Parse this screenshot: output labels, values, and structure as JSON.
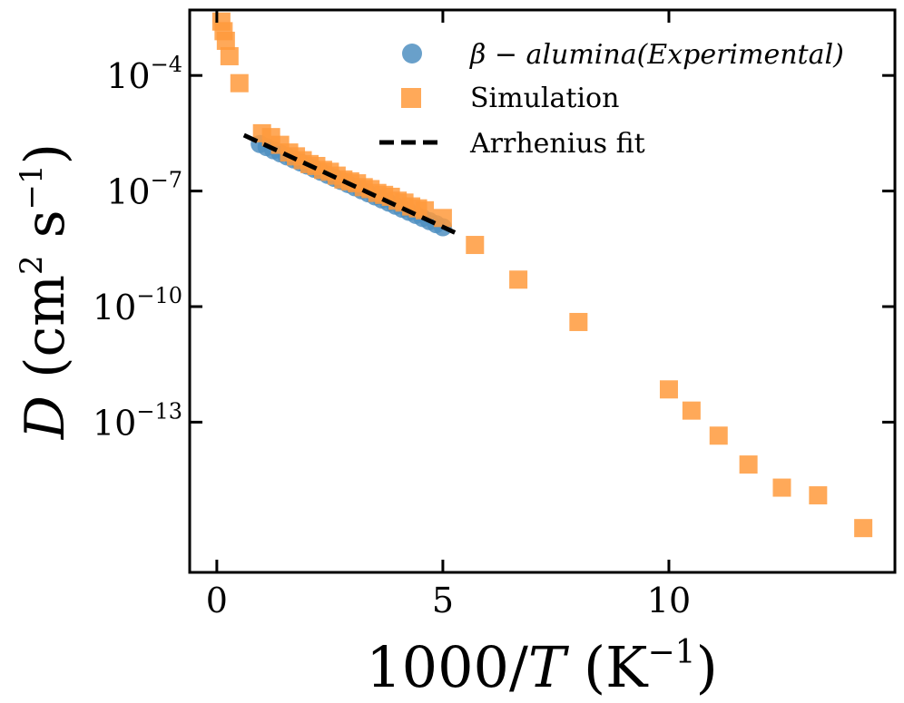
{
  "chart_data": {
    "type": "scatter",
    "title": "",
    "xlabel": "1000/T (K⁻¹)",
    "xlabel_parts": {
      "main": "1000/",
      "var": "T",
      "unit_open": " (K",
      "unit_sup": "−1",
      "unit_close": ")"
    },
    "ylabel": "D (cm² s⁻¹)",
    "ylabel_parts": {
      "var": "D",
      "unit_open": " (cm",
      "unit_sup1": "2",
      "unit_mid": " s",
      "unit_sup2": "−1",
      "unit_close": ")"
    },
    "xlim": [
      -0.6,
      15.0
    ],
    "ylim": [
      -16.9,
      -2.3
    ],
    "yscale": "log",
    "xticks": [
      0,
      5,
      10
    ],
    "xtick_labels": [
      "0",
      "5",
      "10"
    ],
    "yticks": [
      -4,
      -7,
      -10,
      -13
    ],
    "ytick_labels": [
      {
        "base": "10",
        "exp": "−4"
      },
      {
        "base": "10",
        "exp": "−7"
      },
      {
        "base": "10",
        "exp": "−10"
      },
      {
        "base": "10",
        "exp": "−13"
      }
    ],
    "legend_position": "top-right",
    "series": [
      {
        "name": "β − alumina(Experimental)",
        "marker": "circle",
        "color": "#4f8fc1",
        "x": [
          0.95,
          1.1,
          1.25,
          1.4,
          1.55,
          1.7,
          1.85,
          2.0,
          2.15,
          2.3,
          2.45,
          2.6,
          2.75,
          2.9,
          3.05,
          3.2,
          3.35,
          3.5,
          3.65,
          3.8,
          3.95,
          4.1,
          4.25,
          4.4,
          4.55,
          4.7,
          4.85,
          5.0
        ],
        "log10_y": [
          -5.78,
          -5.86,
          -5.94,
          -6.02,
          -6.1,
          -6.18,
          -6.26,
          -6.34,
          -6.42,
          -6.5,
          -6.58,
          -6.66,
          -6.74,
          -6.82,
          -6.9,
          -6.98,
          -7.06,
          -7.14,
          -7.22,
          -7.3,
          -7.38,
          -7.46,
          -7.54,
          -7.62,
          -7.7,
          -7.78,
          -7.86,
          -7.94
        ]
      },
      {
        "name": "Simulation",
        "marker": "square",
        "color": "#ff9a3c",
        "x": [
          0.1,
          0.15,
          0.2,
          0.28,
          0.5,
          1.0,
          1.2,
          1.4,
          1.6,
          1.75,
          1.9,
          2.05,
          2.2,
          2.35,
          2.5,
          2.65,
          2.8,
          2.95,
          3.1,
          3.25,
          3.4,
          3.55,
          3.7,
          3.85,
          4.0,
          4.15,
          4.3,
          4.45,
          4.6,
          5.0,
          5.71,
          6.67,
          8.0,
          10.0,
          10.5,
          11.1,
          11.76,
          12.5,
          13.3,
          14.3
        ],
        "log10_y": [
          -2.6,
          -2.85,
          -3.1,
          -3.5,
          -4.2,
          -5.5,
          -5.6,
          -5.8,
          -6.0,
          -6.1,
          -6.2,
          -6.3,
          -6.35,
          -6.45,
          -6.5,
          -6.6,
          -6.7,
          -6.75,
          -6.8,
          -6.9,
          -6.95,
          -7.05,
          -7.1,
          -7.15,
          -7.25,
          -7.3,
          -7.4,
          -7.45,
          -7.5,
          -7.7,
          -8.4,
          -9.3,
          -10.4,
          -12.15,
          -12.7,
          -13.35,
          -14.1,
          -14.7,
          -14.9,
          -15.75
        ]
      },
      {
        "name": "Arrhenius fit",
        "marker": "dashed-line",
        "color": "#000000",
        "x": [
          0.6,
          5.4
        ],
        "log10_y": [
          -5.55,
          -8.15
        ]
      }
    ]
  }
}
